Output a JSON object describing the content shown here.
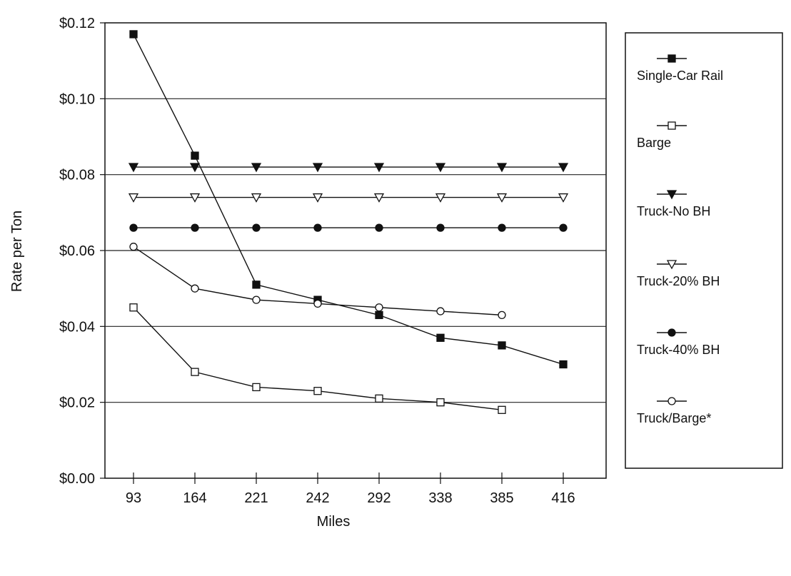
{
  "chart_data": {
    "type": "line",
    "title": "",
    "xlabel": "Miles",
    "ylabel": "Rate per Ton",
    "categories": [
      "93",
      "164",
      "221",
      "242",
      "292",
      "338",
      "385",
      "416"
    ],
    "ylim": [
      0,
      0.12
    ],
    "yticks": [
      0,
      0.02,
      0.04,
      0.06,
      0.08,
      0.1,
      0.12
    ],
    "ytick_labels": [
      "$0.00",
      "$0.02",
      "$0.04",
      "$0.06",
      "$0.08",
      "$0.10",
      "$0.12"
    ],
    "grid": "horizontal",
    "legend_position": "right",
    "series": [
      {
        "name": "Single-Car Rail",
        "marker": "filled-square",
        "values": [
          0.117,
          0.085,
          0.051,
          0.047,
          0.043,
          0.037,
          0.035,
          0.03
        ]
      },
      {
        "name": "Barge",
        "marker": "open-square",
        "values": [
          0.045,
          0.028,
          0.024,
          0.023,
          0.021,
          0.02,
          0.018,
          null
        ]
      },
      {
        "name": "Truck-No BH",
        "marker": "filled-triangle-down",
        "values": [
          0.082,
          0.082,
          0.082,
          0.082,
          0.082,
          0.082,
          0.082,
          0.082
        ]
      },
      {
        "name": "Truck-20% BH",
        "marker": "open-triangle-down",
        "values": [
          0.074,
          0.074,
          0.074,
          0.074,
          0.074,
          0.074,
          0.074,
          0.074
        ]
      },
      {
        "name": "Truck-40% BH",
        "marker": "filled-circle",
        "values": [
          0.066,
          0.066,
          0.066,
          0.066,
          0.066,
          0.066,
          0.066,
          0.066
        ]
      },
      {
        "name": "Truck/Barge*",
        "marker": "open-circle",
        "values": [
          0.061,
          0.05,
          0.047,
          0.046,
          0.045,
          0.044,
          0.043,
          null
        ]
      }
    ]
  }
}
